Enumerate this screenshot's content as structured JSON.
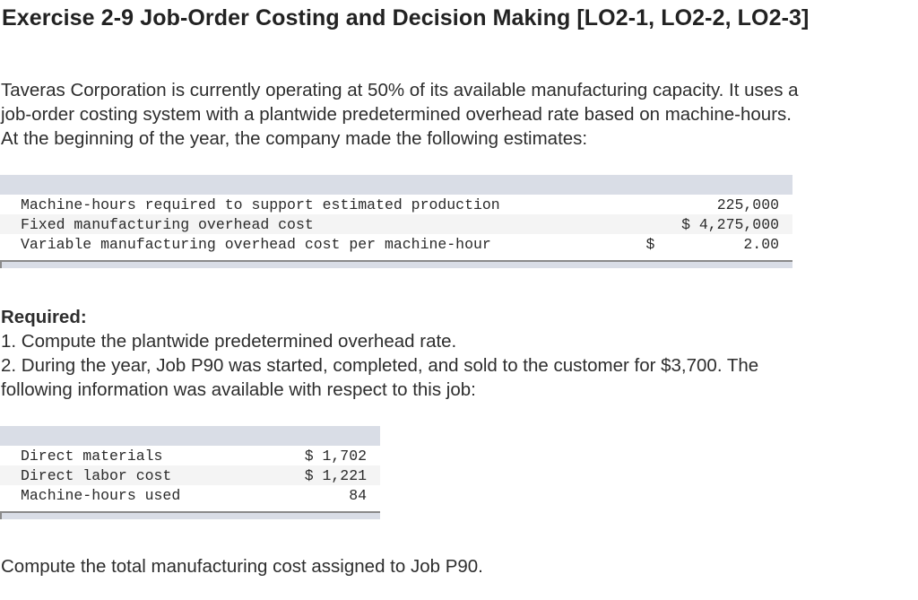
{
  "title": "Exercise 2-9 Job-Order Costing and Decision Making [LO2-1, LO2-2, LO2-3]",
  "intro": {
    "lines": [
      "Taveras Corporation is currently operating at 50% of its available manufacturing capacity. It uses a",
      "job-order costing system with a plantwide predetermined overhead rate based on machine-hours.",
      "At the beginning of the year, the company made the following estimates:"
    ]
  },
  "estimates_table": {
    "rows": [
      {
        "label": "Machine-hours required to support estimated production",
        "value": "225,000"
      },
      {
        "label": "Fixed manufacturing overhead cost",
        "value": "$ 4,275,000"
      },
      {
        "label": "Variable manufacturing overhead cost per machine-hour",
        "value": "$          2.00"
      }
    ]
  },
  "required": {
    "heading": "Required:",
    "items": [
      "1. Compute the plantwide predetermined overhead rate.",
      "2. During the year, Job P90 was started, completed, and sold to the customer for $3,700. The",
      "following information was available with respect to this job:"
    ]
  },
  "job_table": {
    "rows": [
      {
        "label": "Direct materials",
        "value": "$ 1,702"
      },
      {
        "label": "Direct labor cost",
        "value": "$ 1,221"
      },
      {
        "label": "Machine-hours used",
        "value": "84"
      }
    ]
  },
  "final_instruction": "Compute the total manufacturing cost assigned to Job P90."
}
